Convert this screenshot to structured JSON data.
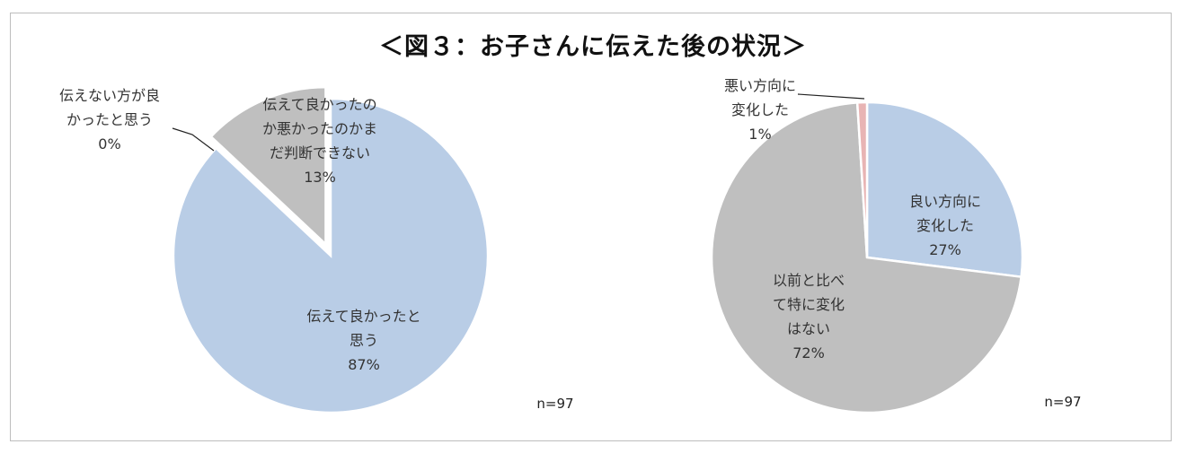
{
  "title": "＜図３：お子さんに伝えた後の状況＞",
  "chart_data": [
    {
      "type": "pie",
      "note": "n=97",
      "slices": [
        {
          "label_lines": [
            "伝えて良かったと",
            "思う"
          ],
          "value": 87,
          "value_label": "87%",
          "color": "#b9cde6"
        },
        {
          "label_lines": [
            "伝えて良かったの",
            "か悪かったのかま",
            "だ判断できない"
          ],
          "value": 13,
          "value_label": "13%",
          "color": "#bfbfbf"
        },
        {
          "label_lines": [
            "伝えない方が良",
            "かったと思う"
          ],
          "value": 0,
          "value_label": "0%",
          "color": "#e8b4b4"
        }
      ]
    },
    {
      "type": "pie",
      "note": "n=97",
      "slices": [
        {
          "label_lines": [
            "良い方向に",
            "変化した"
          ],
          "value": 27,
          "value_label": "27%",
          "color": "#b9cde6"
        },
        {
          "label_lines": [
            "以前と比べ",
            "て特に変化",
            "はない"
          ],
          "value": 72,
          "value_label": "72%",
          "color": "#bfbfbf"
        },
        {
          "label_lines": [
            "悪い方向に",
            "変化した"
          ],
          "value": 1,
          "value_label": "1%",
          "color": "#e8b4b4"
        }
      ]
    }
  ]
}
